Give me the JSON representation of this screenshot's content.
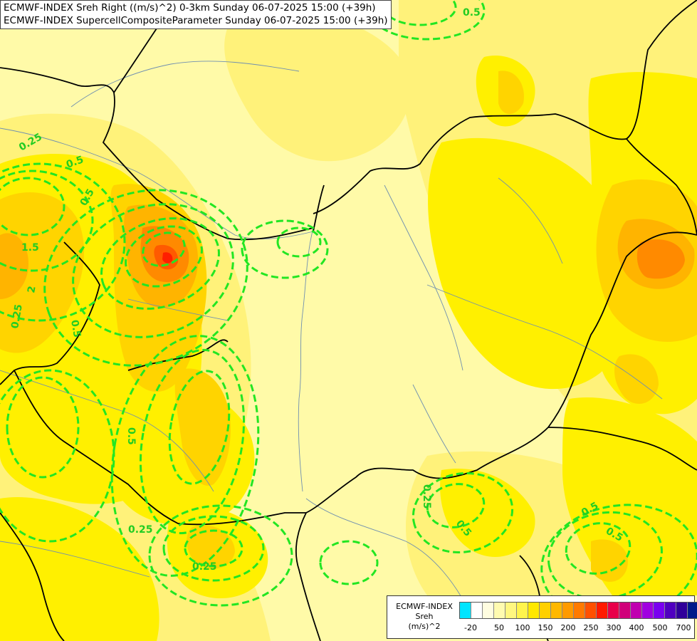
{
  "header": {
    "line1": "ECMWF-INDEX Sreh Right ((m/s)^2) 0-3km Sunday 06-07-2025 15:00 (+39h)",
    "line2": "ECMWF-INDEX SupercellCompositeParameter Sunday 06-07-2025 15:00 (+39h)"
  },
  "legend": {
    "title_line1": "ECMWF-INDEX",
    "title_line2": "Sreh",
    "title_line3": "(m/s)^2",
    "colors": [
      "#00e5ff",
      "#ffffff",
      "#fffde0",
      "#fffbb0",
      "#fff780",
      "#fff44d",
      "#ffe800",
      "#ffd000",
      "#ffb800",
      "#ff9a00",
      "#ff7a00",
      "#ff5000",
      "#ff1a00",
      "#e8004a",
      "#d0007a",
      "#c000b0",
      "#a000e0",
      "#7a00f0",
      "#5000c0",
      "#30009a",
      "#001a8a"
    ],
    "ticks": [
      "-20",
      "50",
      "100",
      "150",
      "200",
      "250",
      "300",
      "400",
      "500",
      "700"
    ]
  },
  "map": {
    "field_colors": {
      "light": "#fffaa8",
      "pale": "#fff27a",
      "yellow": "#fff000",
      "gold": "#ffd400",
      "orange": "#ffb400",
      "dark_orange": "#ff8a00",
      "red_orange": "#ff5a00",
      "red": "#ff1e00"
    },
    "contour_color": "#22e622",
    "border_color": "#000000",
    "river_color": "#6f8fb0",
    "contour_labels": [
      "0.25",
      "0.5",
      "0.5",
      "1.5",
      "2",
      "0.5",
      "0.25",
      "0.5",
      "0.25",
      "0.25",
      "0.5",
      "0.5",
      "0.5",
      "0.25",
      "0.5"
    ]
  }
}
